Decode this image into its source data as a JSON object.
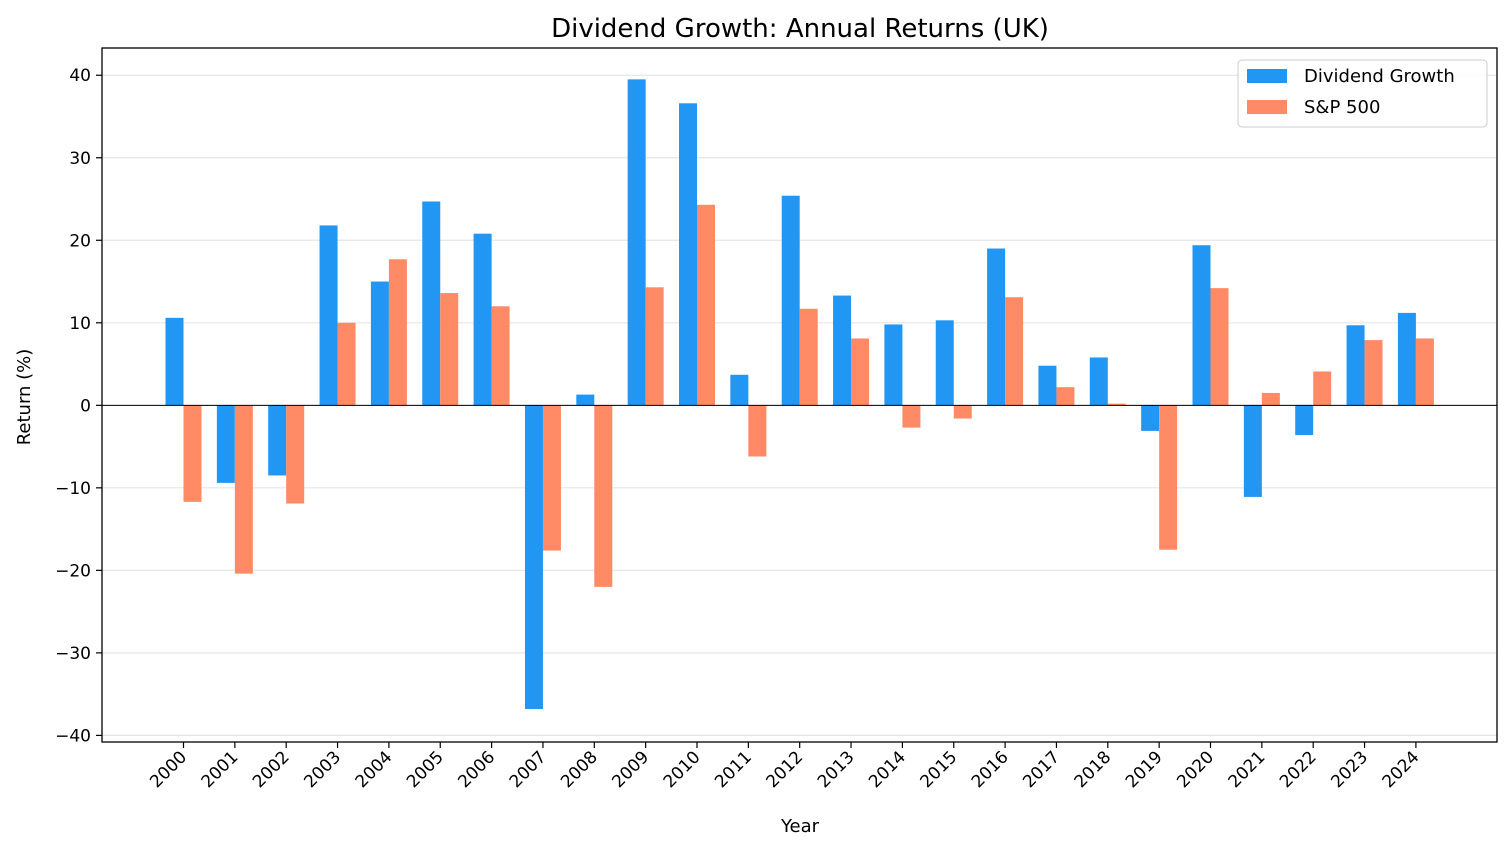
{
  "chart_data": {
    "type": "bar",
    "title": "Dividend Growth: Annual Returns (UK)",
    "xlabel": "Year",
    "ylabel": "Return (%)",
    "ylim": [
      -40.8,
      43.3
    ],
    "yticks": [
      -40,
      -30,
      -20,
      -10,
      0,
      10,
      20,
      30,
      40
    ],
    "ytick_labels": [
      "−40",
      "−30",
      "−20",
      "−10",
      "0",
      "10",
      "20",
      "30",
      "40"
    ],
    "grid": "horizontal",
    "legend_position": "top-right",
    "categories": [
      "2000",
      "2001",
      "2002",
      "2003",
      "2004",
      "2005",
      "2006",
      "2007",
      "2008",
      "2009",
      "2010",
      "2011",
      "2012",
      "2013",
      "2014",
      "2015",
      "2016",
      "2017",
      "2018",
      "2019",
      "2020",
      "2021",
      "2022",
      "2023",
      "2024"
    ],
    "series": [
      {
        "name": "Dividend Growth",
        "color": "#2196f3",
        "values": [
          10.6,
          -9.4,
          -8.5,
          21.8,
          15.0,
          24.7,
          20.8,
          -36.8,
          1.3,
          39.5,
          36.6,
          3.7,
          25.4,
          13.3,
          9.8,
          10.3,
          19.0,
          4.8,
          5.8,
          -3.1,
          19.4,
          -11.1,
          -3.6,
          9.7,
          11.2
        ]
      },
      {
        "name": "S&P 500",
        "color": "#ff8a65",
        "values": [
          -11.7,
          -20.4,
          -11.9,
          10.0,
          17.7,
          13.6,
          12.0,
          -17.6,
          -22.0,
          14.3,
          24.3,
          -6.2,
          11.7,
          8.1,
          -2.7,
          -1.6,
          13.1,
          2.2,
          0.2,
          -17.5,
          14.2,
          1.5,
          4.1,
          7.9,
          8.1
        ]
      }
    ]
  }
}
